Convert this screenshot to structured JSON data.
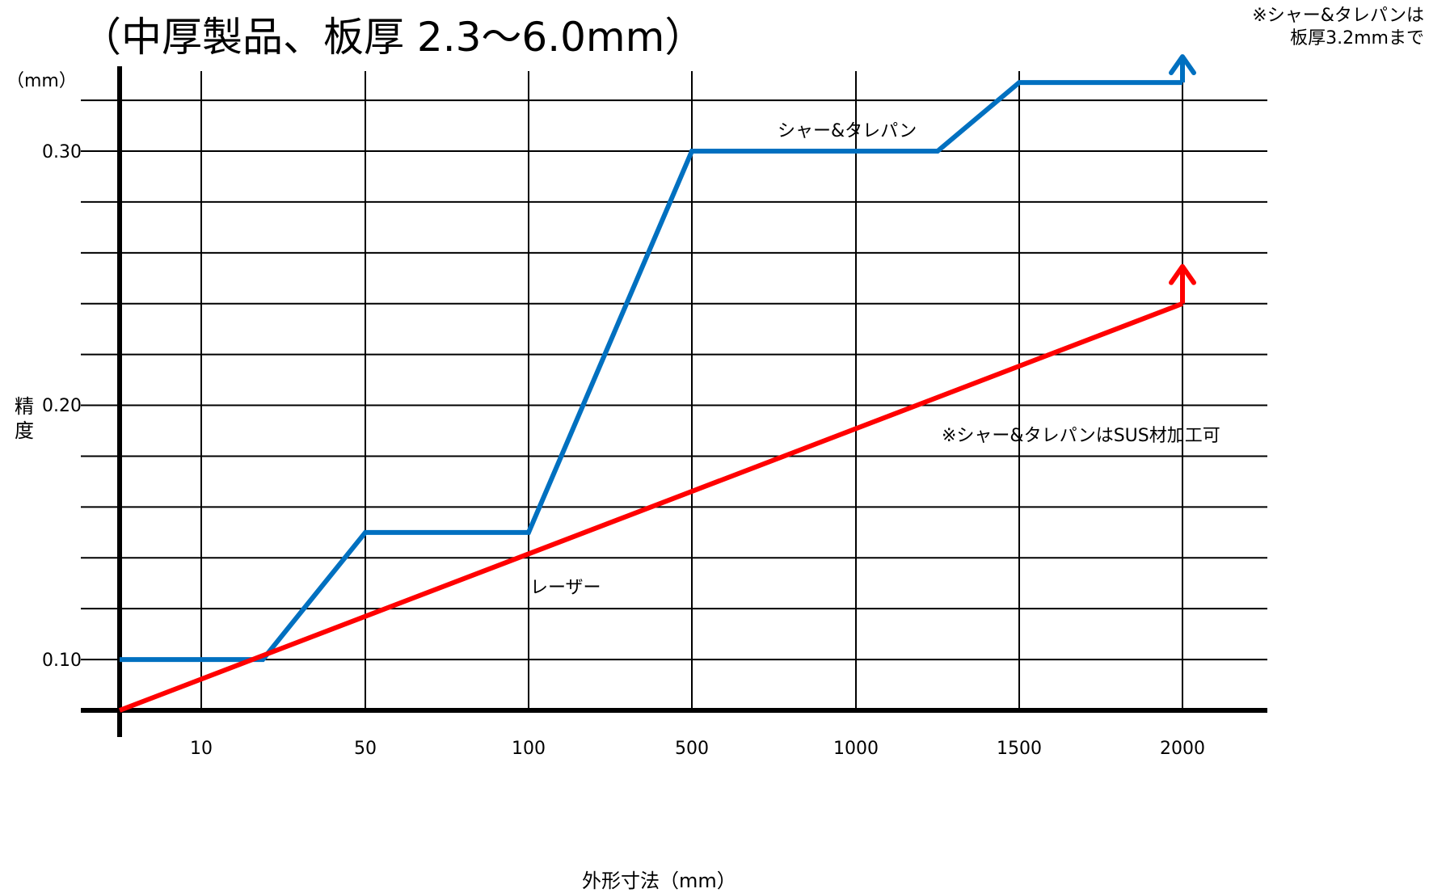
{
  "title": "（中厚製品、板厚 2.3〜6.0mm）",
  "note_top": [
    "※シャー&タレパンは",
    "板厚3.2mmまで"
  ],
  "ylabel_unit": "（mm）",
  "ylabel": "精度",
  "xlabel": "外形寸法（mm）",
  "annotations": {
    "shear": "シャー&タレパン",
    "laser": "レーザー",
    "sus_note": "※シャー&タレパンはSUS材加工可"
  },
  "colors": {
    "shear": "#0070c0",
    "laser": "#ff0000",
    "grid": "#000000"
  },
  "chart_data": {
    "type": "line",
    "title": "（中厚製品、板厚 2.3〜6.0mm）",
    "xlabel": "外形寸法（mm）",
    "ylabel": "精度",
    "y_unit": "（mm）",
    "x_scale": "categorical (non-linear)",
    "x_ticks": [
      "10",
      "50",
      "100",
      "500",
      "1000",
      "1500",
      "2000"
    ],
    "y_ticks": [
      "0.10",
      "0.20",
      "0.30"
    ],
    "ylim": [
      0.08,
      0.34
    ],
    "grid": true,
    "series": [
      {
        "name": "シャー&タレパン",
        "color": "#0070c0",
        "x": [
          0,
          20,
          25,
          50,
          95,
          100,
          500,
          1250,
          1500,
          2000
        ],
        "y": [
          0.1,
          0.1,
          0.1,
          0.15,
          0.15,
          0.15,
          0.3,
          0.3,
          0.327,
          0.327
        ],
        "end_arrow": "up"
      },
      {
        "name": "レーザー",
        "color": "#ff0000",
        "x": [
          0,
          2000
        ],
        "y": [
          0.08,
          0.24
        ],
        "end_arrow": "up"
      }
    ]
  }
}
